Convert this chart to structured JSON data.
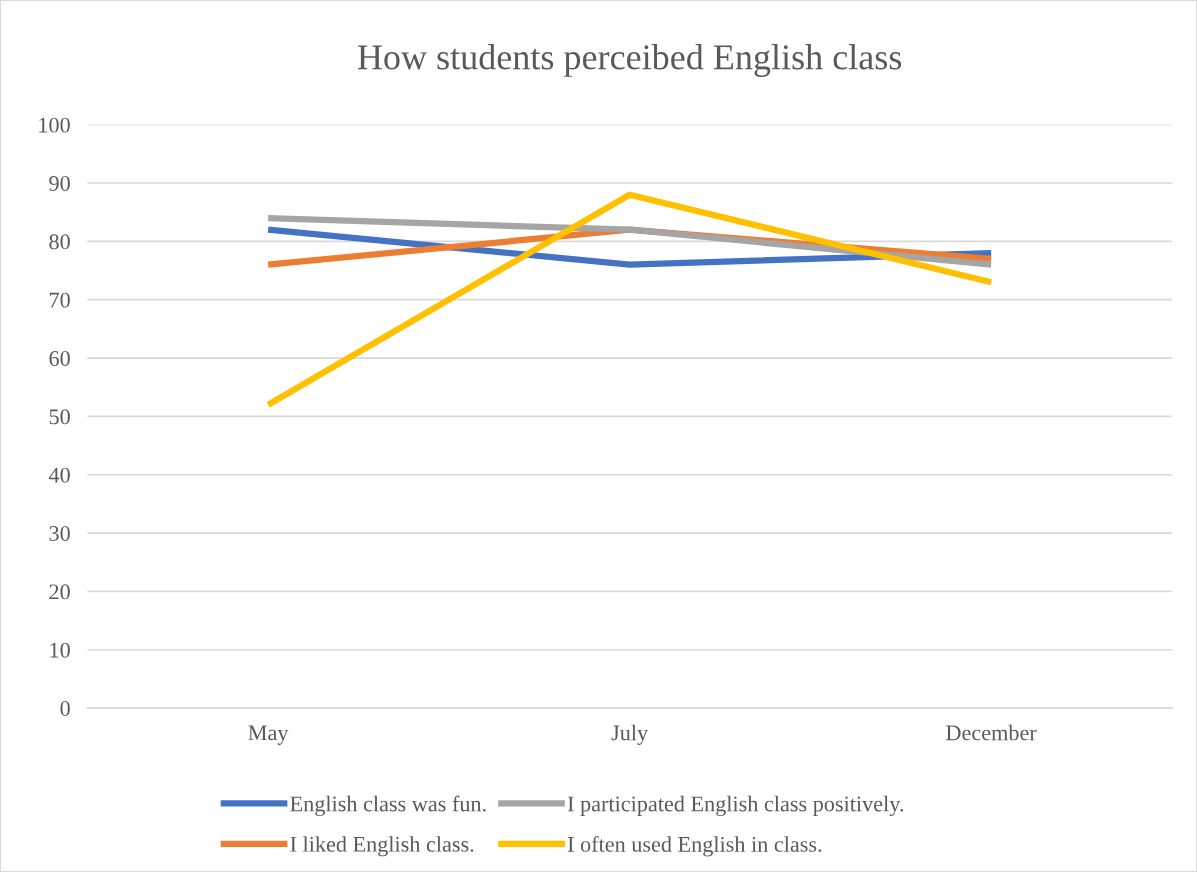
{
  "chart_data": {
    "type": "line",
    "title": "How students perceibed English class",
    "categories": [
      "May",
      "July",
      "December"
    ],
    "series": [
      {
        "name": "English class was fun.",
        "color": "#4472c4",
        "values": [
          82,
          76,
          78
        ]
      },
      {
        "name": "I liked English class.",
        "color": "#ed7d31",
        "values": [
          76,
          82,
          77
        ]
      },
      {
        "name": "I participated English class positively.",
        "color": "#a5a5a5",
        "values": [
          84,
          82,
          76
        ]
      },
      {
        "name": "I often used English in class.",
        "color": "#ffc000",
        "values": [
          52,
          88,
          73
        ]
      }
    ],
    "ylim": [
      0,
      100
    ],
    "yticks": [
      0,
      10,
      20,
      30,
      40,
      50,
      60,
      70,
      80,
      90,
      100
    ],
    "grid": "y",
    "legend": "bottom",
    "marker": "none",
    "line_style": "solid"
  }
}
